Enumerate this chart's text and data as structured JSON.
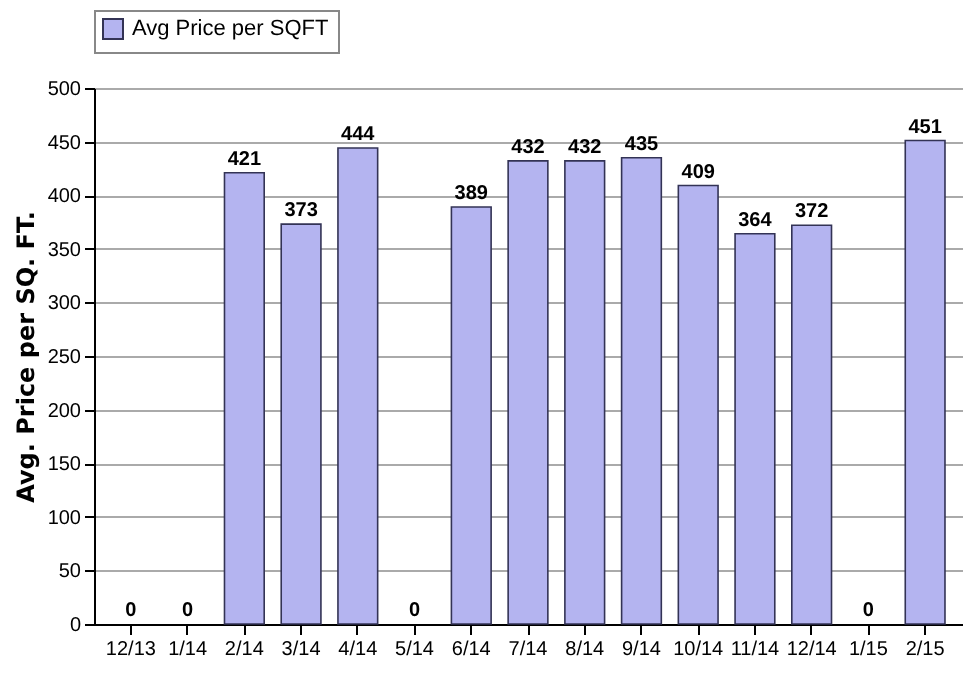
{
  "chart_data": {
    "type": "bar",
    "ylabel": "Avg. Price per SQ. FT.",
    "categories": [
      "12/13",
      "1/14",
      "2/14",
      "3/14",
      "4/14",
      "5/14",
      "6/14",
      "7/14",
      "8/14",
      "9/14",
      "10/14",
      "11/14",
      "12/14",
      "1/15",
      "2/15"
    ],
    "series": [
      {
        "name": "Avg Price per SQFT",
        "color": "#b4b4f0",
        "values": [
          0,
          0,
          421,
          373,
          444,
          0,
          389,
          432,
          432,
          435,
          409,
          364,
          372,
          0,
          451
        ]
      }
    ],
    "ylim": [
      0,
      500
    ],
    "yticks": [
      0,
      50,
      100,
      150,
      200,
      250,
      300,
      350,
      400,
      450,
      500
    ],
    "grid": "y",
    "legend": "top",
    "data_labels": true
  }
}
